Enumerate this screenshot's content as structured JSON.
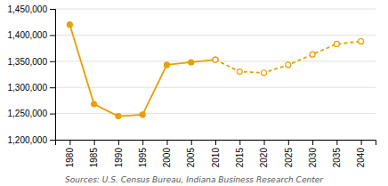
{
  "chart_data": {
    "type": "line",
    "x": [
      1980,
      1985,
      1990,
      1995,
      2000,
      2005,
      2010,
      2015,
      2020,
      2025,
      2030,
      2035,
      2040
    ],
    "series": [
      {
        "color": "#E8A000",
        "line_style": "solid",
        "marker": "circle",
        "values": [
          1420000,
          1268000,
          1245000,
          1248000,
          1343000,
          1348000,
          1353000,
          null,
          null,
          null,
          null,
          null,
          null
        ]
      },
      {
        "color": "#E8A000",
        "line_style": "dashed",
        "marker": "circle-open",
        "values": [
          null,
          null,
          null,
          null,
          null,
          null,
          1353000,
          1330000,
          1328000,
          1343000,
          1363000,
          1383000,
          1388000
        ]
      }
    ],
    "xlim": [
      1977,
      2043
    ],
    "xticks": [
      1980,
      1985,
      1990,
      1995,
      2000,
      2005,
      2010,
      2015,
      2020,
      2025,
      2030,
      2035,
      2040
    ],
    "ylim": [
      1200000,
      1450000
    ],
    "yticks": [
      {
        "value": 1200000,
        "label": "1,200,000"
      },
      {
        "value": 1250000,
        "label": "1,250,000"
      },
      {
        "value": 1300000,
        "label": "1,300,000"
      },
      {
        "value": 1350000,
        "label": "1,350,000"
      },
      {
        "value": 1400000,
        "label": "1,400,000"
      },
      {
        "value": 1450000,
        "label": "1,450,000"
      }
    ],
    "grid": true,
    "annotations": [
      "Sources: U.S. Census Bureau, Indiana Business Research Center"
    ]
  }
}
